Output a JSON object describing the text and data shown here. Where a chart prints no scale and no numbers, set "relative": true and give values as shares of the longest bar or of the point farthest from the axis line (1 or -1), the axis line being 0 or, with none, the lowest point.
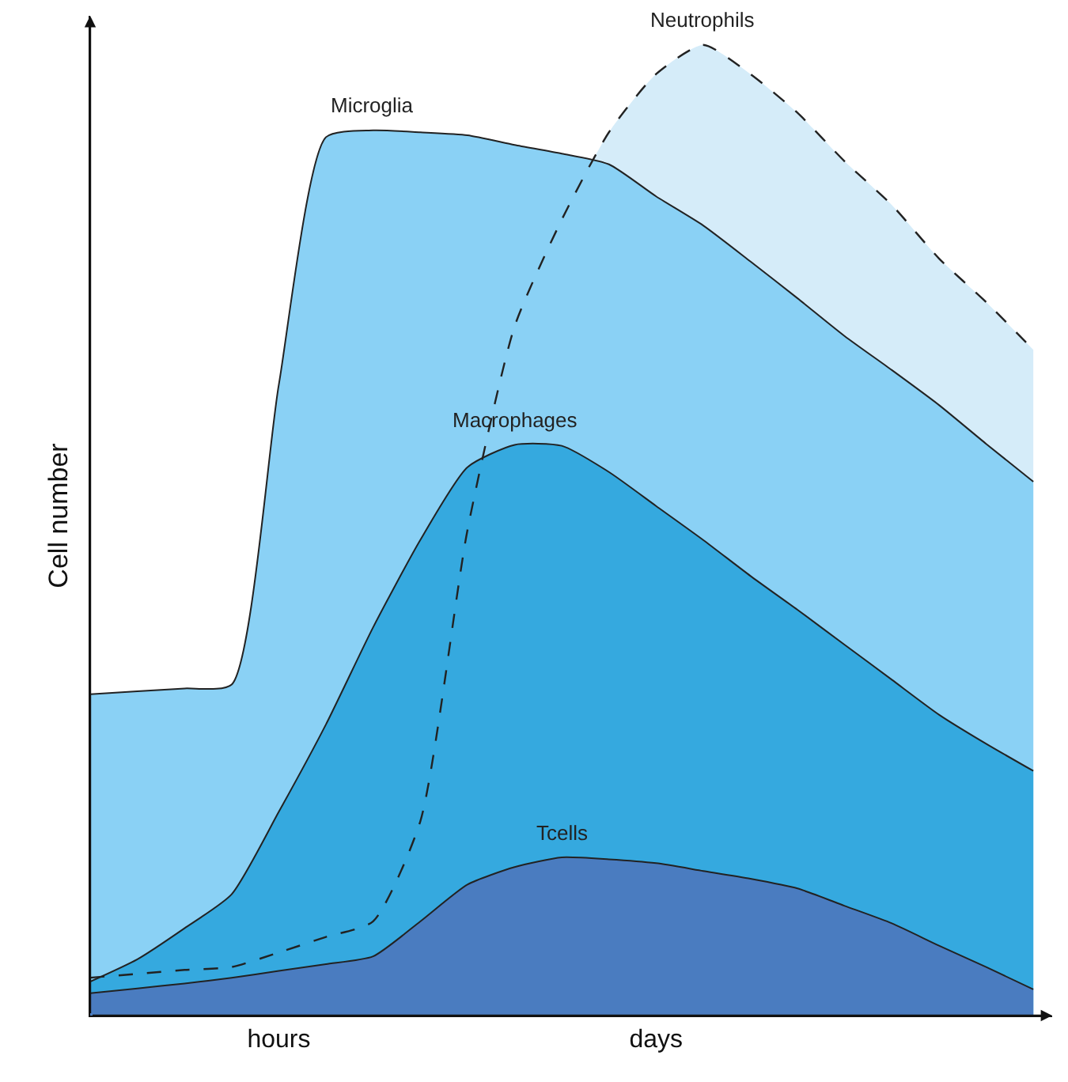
{
  "chart_data": {
    "type": "area",
    "relative": true,
    "ylabel": "Cell number",
    "categories": [
      null,
      null,
      null,
      null,
      "hours",
      null,
      null,
      null,
      null,
      null,
      null,
      null,
      "days",
      null,
      null,
      null,
      null,
      null,
      null,
      null,
      null
    ],
    "legend": false,
    "series": [
      {
        "name": "Neutrophils",
        "color": "#d5ecf9",
        "line_style": "dashed",
        "values": [
          0.039,
          0.043,
          0.047,
          0.05,
          0.065,
          0.081,
          0.097,
          0.2,
          0.5,
          0.71,
          0.82,
          0.91,
          0.97,
          1,
          0.97,
          0.93,
          0.88,
          0.835,
          0.78,
          0.735,
          0.686
        ]
      },
      {
        "name": "Microglia",
        "color": "#8ad1f5",
        "values": [
          0.331,
          0.334,
          0.337,
          0.341,
          0.65,
          0.905,
          0.912,
          0.91,
          0.907,
          0.897,
          0.888,
          0.877,
          0.844,
          0.814,
          0.777,
          0.739,
          0.7,
          0.665,
          0.629,
          0.589,
          0.55
        ]
      },
      {
        "name": "Macrophages",
        "color": "#35a9df",
        "values": [
          0.035,
          0.058,
          0.09,
          0.125,
          0.21,
          0.3,
          0.4,
          0.49,
          0.565,
          0.588,
          0.587,
          0.56,
          0.525,
          0.49,
          0.453,
          0.418,
          0.382,
          0.346,
          0.31,
          0.28,
          0.252
        ]
      },
      {
        "name": "Tcells",
        "color": "#4a7cc0",
        "values": [
          0.023,
          0.028,
          0.033,
          0.039,
          0.046,
          0.053,
          0.061,
          0.097,
          0.135,
          0.153,
          0.163,
          0.161,
          0.157,
          0.149,
          0.141,
          0.131,
          0.113,
          0.095,
          0.072,
          0.05,
          0.027
        ]
      }
    ]
  }
}
